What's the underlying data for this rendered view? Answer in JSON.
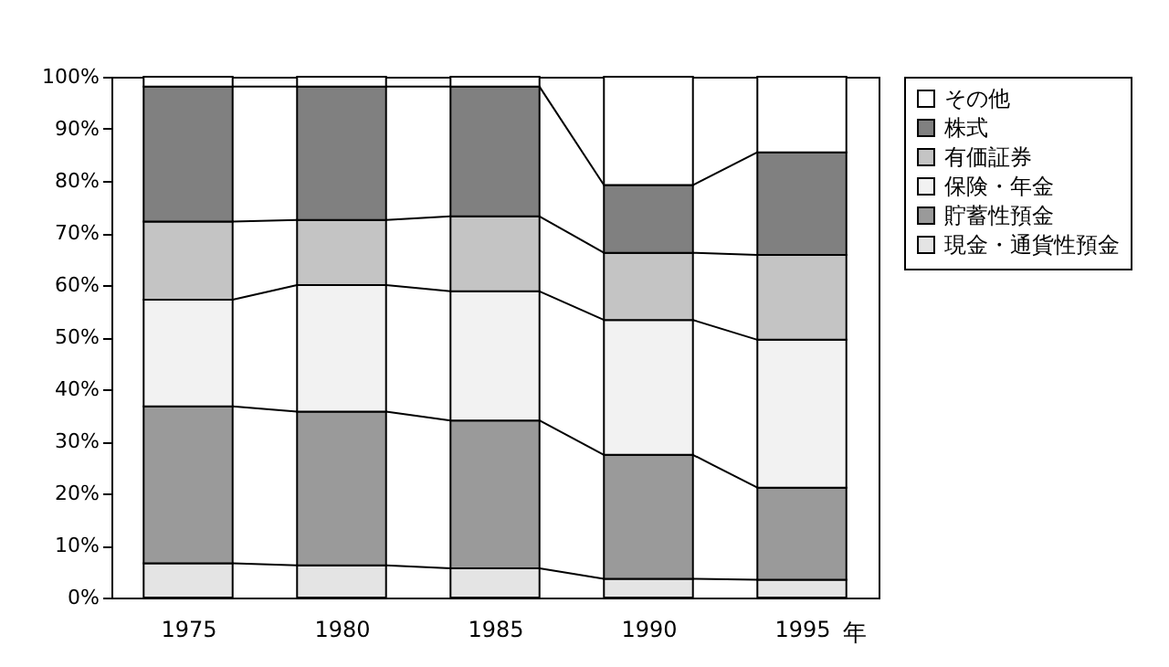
{
  "chart_data": {
    "type": "bar",
    "stacked": true,
    "xlabel": "年",
    "categories": [
      "1975",
      "1980",
      "1985",
      "1990",
      "1995"
    ],
    "series": [
      {
        "name": "現金・通貨性預金",
        "color": "#e4e4e4",
        "values": [
          6.6,
          6.2,
          5.6,
          3.6,
          3.4
        ]
      },
      {
        "name": "貯蓄性預金",
        "color": "#9a9a9a",
        "values": [
          30.1,
          29.5,
          28.4,
          23.8,
          17.7
        ]
      },
      {
        "name": "保険・年金",
        "color": "#f2f2f2",
        "values": [
          20.5,
          24.3,
          24.8,
          25.9,
          28.4
        ]
      },
      {
        "name": "有価証券",
        "color": "#c4c4c4",
        "values": [
          15.0,
          12.5,
          14.4,
          12.9,
          16.3
        ]
      },
      {
        "name": "株式",
        "color": "#808080",
        "values": [
          25.9,
          25.6,
          24.9,
          13.0,
          19.7
        ]
      },
      {
        "name": "その他",
        "color": "#ffffff",
        "values": [
          1.9,
          1.9,
          1.9,
          20.8,
          14.5
        ]
      }
    ],
    "ylim": [
      0,
      100
    ],
    "yticks": [
      {
        "value": 0,
        "label": "0%"
      },
      {
        "value": 10,
        "label": "10%"
      },
      {
        "value": 20,
        "label": "20%"
      },
      {
        "value": 30,
        "label": "30%"
      },
      {
        "value": 40,
        "label": "40%"
      },
      {
        "value": 50,
        "label": "50%"
      },
      {
        "value": 60,
        "label": "60%"
      },
      {
        "value": 70,
        "label": "70%"
      },
      {
        "value": 80,
        "label": "80%"
      },
      {
        "value": 90,
        "label": "90%"
      },
      {
        "value": 100,
        "label": "100%"
      }
    ],
    "grid": false,
    "legend": "right"
  }
}
